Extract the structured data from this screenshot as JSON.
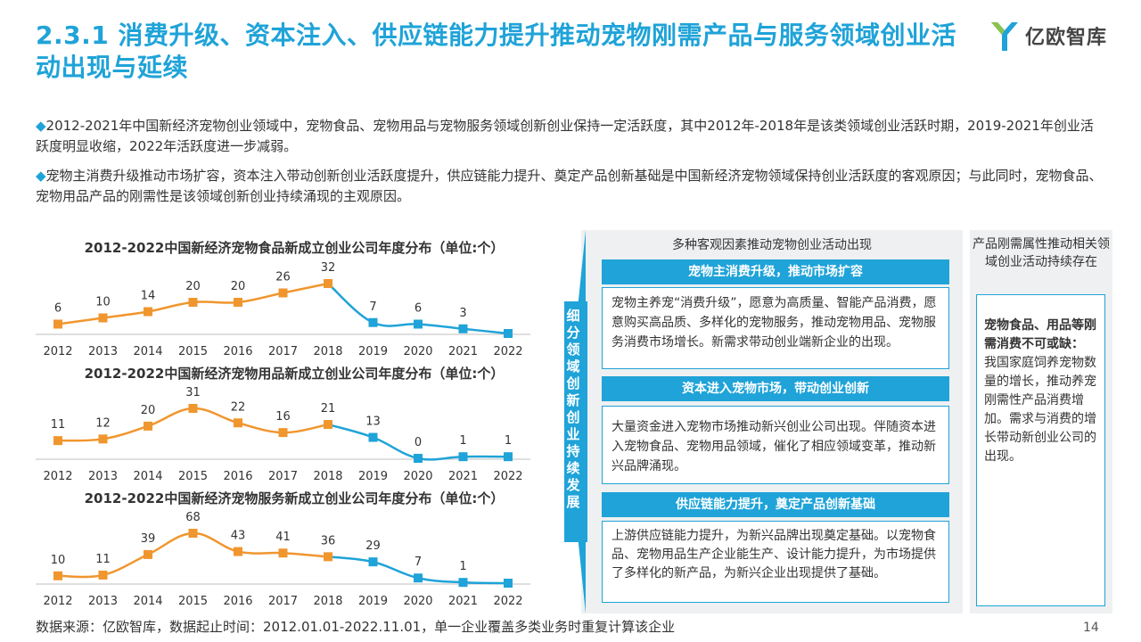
{
  "header": {
    "title": "2.3.1 消费升级、资本注入、供应链能力提升推动宠物刚需产品与服务领域创业活动出现与延续",
    "logo_text": "亿欧智库"
  },
  "bullets": [
    "2012-2021年中国新经济宠物创业领域中，宠物食品、宠物用品与宠物服务领域创新创业保持一定活跃度，其中2012年-2018年是该类领域创业活跃时期，2019-2021年创业活跃度明显收缩，2022年活跃度进一步减弱。",
    "宠物主消费升级推动市场扩容，资本注入带动创新创业活跃度提升，供应链能力提升、奠定产品创新基础是中国新经济宠物领域保持创业活跃度的客观原因；与此同时，宠物食品、宠物用品产品的刚需性是该领域创新创业持续涌现的主观原因。"
  ],
  "bullet_marker": "◆",
  "colors": {
    "accent": "#1fa3d8",
    "orange": "#f0962e",
    "blue_line": "#1fa3d8"
  },
  "chart_data": [
    {
      "type": "line",
      "title": "2012-2022中国新经济宠物食品新成立创业公司年度分布（单位:个）",
      "categories": [
        "2012",
        "2013",
        "2014",
        "2015",
        "2016",
        "2017",
        "2018",
        "2019",
        "2020",
        "2021",
        "2022"
      ],
      "values": [
        6,
        10,
        14,
        20,
        20,
        26,
        32,
        7,
        6,
        3,
        0
      ],
      "value_labels": [
        "6",
        "10",
        "14",
        "20",
        "20",
        "26",
        "32",
        "7",
        "6",
        "3",
        ""
      ],
      "ylim": [
        0,
        32
      ]
    },
    {
      "type": "line",
      "title": "2012-2022中国新经济宠物用品新成立创业公司年度分布（单位:个）",
      "categories": [
        "2012",
        "2013",
        "2014",
        "2015",
        "2016",
        "2017",
        "2018",
        "2019",
        "2020",
        "2021",
        "2022"
      ],
      "values": [
        11,
        12,
        20,
        31,
        22,
        16,
        21,
        13,
        0,
        1,
        1
      ],
      "value_labels": [
        "11",
        "12",
        "20",
        "31",
        "22",
        "16",
        "21",
        "13",
        "0",
        "1",
        "1"
      ],
      "ylim": [
        0,
        31
      ]
    },
    {
      "type": "line",
      "title": "2012-2022中国新经济宠物服务新成立创业公司年度分布（单位:个）",
      "categories": [
        "2012",
        "2013",
        "2014",
        "2015",
        "2016",
        "2017",
        "2018",
        "2019",
        "2020",
        "2021",
        "2022"
      ],
      "values": [
        10,
        11,
        39,
        68,
        43,
        41,
        36,
        29,
        7,
        1,
        0
      ],
      "value_labels": [
        "10",
        "11",
        "39",
        "68",
        "43",
        "41",
        "36",
        "29",
        "7",
        "1",
        ""
      ],
      "ylim": [
        0,
        68
      ]
    }
  ],
  "middle": {
    "vertical_label": "细分领域创新创业持续发展",
    "heading": "多种客观因素推动宠物创业活动出现",
    "factors": [
      {
        "title": "宠物主消费升级，推动市场扩容",
        "body": "宠物主养宠“消费升级”，愿意为高质量、智能产品消费，愿意购买高品质、多样化的宠物服务，推动宠物用品、宠物服务消费市场增长。新需求带动创业端新企业的出现。"
      },
      {
        "title": "资本进入宠物市场，带动创业创新",
        "body": "大量资金进入宠物市场推动新兴创业公司出现。伴随资本进入宠物食品、宠物用品领域，催化了相应领域变革，推动新兴品牌涌现。"
      },
      {
        "title": "供应链能力提升，奠定产品创新基础",
        "body": "上游供应链能力提升，为新兴品牌出现奠定基础。以宠物食品、宠物用品生产企业能生产、设计能力提升，为市场提供了多样化的新产品，为新兴企业出现提供了基础。"
      }
    ]
  },
  "right": {
    "heading": "产品刚需属性推动相关领域创业活动持续存在",
    "bold": "宠物食品、用品等刚需消费不可或缺：",
    "body": "我国家庭饲养宠物数量的增长，推动养宠刚需性产品消费增加。需求与消费的增长带动新创业公司的出现。"
  },
  "footer": {
    "source": "数据来源：亿欧智库，数据起止时间：2012.01.01-2022.11.01，单一企业覆盖多类业务时重复计算该企业",
    "page": "14"
  }
}
